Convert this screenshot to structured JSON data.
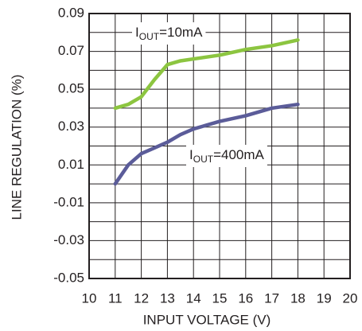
{
  "chart_data": {
    "type": "line",
    "xlabel": "INPUT VOLTAGE (V)",
    "ylabel": "LINE REGULATION (%)",
    "xlim": [
      10,
      20
    ],
    "xticks": [
      10,
      11,
      12,
      13,
      14,
      15,
      16,
      17,
      18,
      19,
      20
    ],
    "ylim": [
      -0.05,
      0.09
    ],
    "yticks": [
      -0.05,
      -0.03,
      -0.01,
      0.01,
      0.03,
      0.05,
      0.07,
      0.09
    ],
    "yminor": [
      -0.04,
      -0.02,
      0,
      0.02,
      0.04,
      0.06,
      0.08
    ],
    "grid": true,
    "series": [
      {
        "name_parts": [
          "I",
          "OUT",
          "=10mA"
        ],
        "color": "#8cc540",
        "x": [
          11,
          11.5,
          12,
          12.5,
          13,
          13.5,
          14,
          15,
          16,
          17,
          18
        ],
        "values": [
          0.04,
          0.042,
          0.046,
          0.055,
          0.063,
          0.065,
          0.066,
          0.068,
          0.071,
          0.073,
          0.076
        ]
      },
      {
        "name_parts": [
          "I",
          "OUT",
          "=400mA"
        ],
        "color": "#5b5c99",
        "x": [
          11,
          11.5,
          12,
          12.5,
          13,
          13.5,
          14,
          14.5,
          15,
          16,
          17,
          18
        ],
        "values": [
          0.0,
          0.01,
          0.016,
          0.019,
          0.022,
          0.026,
          0.029,
          0.031,
          0.033,
          0.036,
          0.04,
          0.042
        ]
      }
    ]
  }
}
